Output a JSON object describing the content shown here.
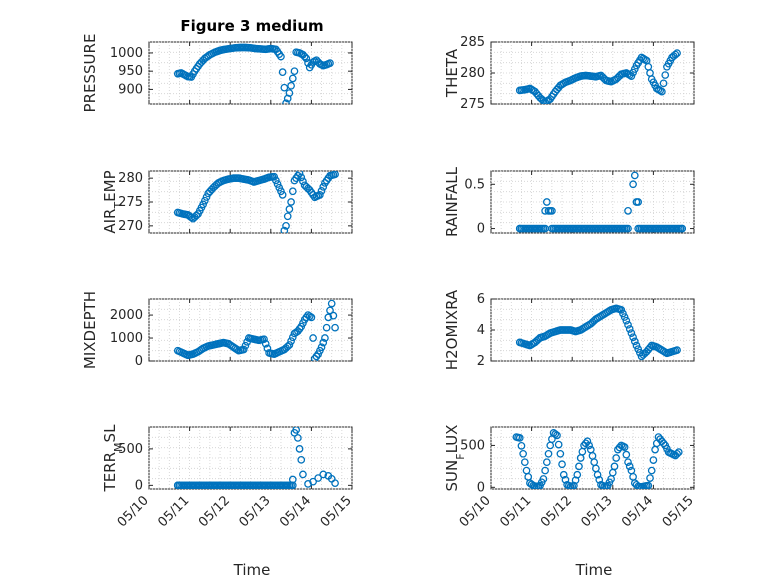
{
  "figure_title": "Figure 3 medium",
  "xlabel": "Time",
  "marker_color": "#0072BD",
  "chart_data": [
    {
      "id": "pressure",
      "type": "scatter",
      "ylabel": "PRESSURE",
      "xlim": [
        "2024-05-10",
        "2024-05-15"
      ],
      "ylim": [
        860,
        1030
      ],
      "yticks": [
        900,
        950,
        1000
      ],
      "ytick_labels": [
        "900",
        "950",
        "1000"
      ],
      "xticks": [
        "05/10",
        "05/11",
        "05/12",
        "05/13",
        "05/14",
        "05/15"
      ],
      "show_xticklabels": false,
      "x": [
        "05/10 17:00",
        "05/10 19:00",
        "05/10 21:00",
        "05/10 23:00",
        "05/11 01:00",
        "05/11 03:00",
        "05/11 06:00",
        "05/11 09:00",
        "05/11 12:00",
        "05/11 15:00",
        "05/11 18:00",
        "05/11 21:00",
        "05/12 00:00",
        "05/12 03:00",
        "05/12 06:00",
        "05/12 09:00",
        "05/12 12:00",
        "05/12 15:00",
        "05/12 18:00",
        "05/12 21:00",
        "05/13 00:00",
        "05/13 03:00",
        "05/13 06:00",
        "05/13 09:00",
        "05/13 10:00",
        "05/13 11:00",
        "05/13 12:00",
        "05/13 13:00",
        "05/13 14:00",
        "05/13 15:00",
        "05/13 17:00",
        "05/13 19:00",
        "05/13 21:00",
        "05/13 23:00",
        "05/14 01:00",
        "05/14 03:00",
        "05/14 05:00",
        "05/14 07:00",
        "05/14 09:00",
        "05/14 11:00"
      ],
      "y": [
        943,
        945,
        940,
        935,
        934,
        950,
        970,
        985,
        995,
        1002,
        1007,
        1010,
        1012,
        1014,
        1015,
        1015,
        1014,
        1012,
        1011,
        1010,
        1012,
        1010,
        990,
        862,
        875,
        890,
        910,
        930,
        950,
        1002,
        1000,
        995,
        985,
        960,
        975,
        980,
        970,
        965,
        968,
        972
      ]
    },
    {
      "id": "theta",
      "type": "scatter",
      "ylabel": "THETA",
      "xlim": [
        "2024-05-10",
        "2024-05-15"
      ],
      "ylim": [
        275,
        285
      ],
      "yticks": [
        275,
        280,
        285
      ],
      "ytick_labels": [
        "275",
        "280",
        "285"
      ],
      "xticks": [
        "05/10",
        "05/11",
        "05/12",
        "05/13",
        "05/14",
        "05/15"
      ],
      "show_xticklabels": false,
      "x": [
        "05/10 17:00",
        "05/10 20:00",
        "05/10 23:00",
        "05/11 02:00",
        "05/11 05:00",
        "05/11 08:00",
        "05/11 11:00",
        "05/11 14:00",
        "05/11 17:00",
        "05/11 20:00",
        "05/11 23:00",
        "05/12 02:00",
        "05/12 05:00",
        "05/12 08:00",
        "05/12 11:00",
        "05/12 14:00",
        "05/12 17:00",
        "05/12 20:00",
        "05/12 23:00",
        "05/13 02:00",
        "05/13 05:00",
        "05/13 08:00",
        "05/13 11:00",
        "05/13 14:00",
        "05/13 17:00",
        "05/13 20:00",
        "05/13 23:00",
        "05/14 02:00",
        "05/14 05:00",
        "05/14 08:00",
        "05/14 11:00",
        "05/14 14:00"
      ],
      "y": [
        277.2,
        277.3,
        277.5,
        277.0,
        276.0,
        275.3,
        275.8,
        277.0,
        278.0,
        278.5,
        278.8,
        279.2,
        279.5,
        279.6,
        279.5,
        279.4,
        279.6,
        278.8,
        278.6,
        279.0,
        279.8,
        280.0,
        279.5,
        281.2,
        282.5,
        282.0,
        279.0,
        277.5,
        277.0,
        281.0,
        282.5,
        283.2
      ]
    },
    {
      "id": "air-temp",
      "type": "scatter",
      "ylabel": "AIR_TEMP",
      "xlim": [
        "2024-05-10",
        "2024-05-15"
      ],
      "ylim": [
        268.5,
        281.5
      ],
      "yticks": [
        270,
        275,
        280
      ],
      "ytick_labels": [
        "270",
        "275",
        "280"
      ],
      "xticks": [
        "05/10",
        "05/11",
        "05/12",
        "05/13",
        "05/14",
        "05/15"
      ],
      "show_xticklabels": false,
      "x": [
        "05/10 17:00",
        "05/10 20:00",
        "05/10 23:00",
        "05/11 02:00",
        "05/11 05:00",
        "05/11 08:00",
        "05/11 11:00",
        "05/11 14:00",
        "05/11 17:00",
        "05/11 20:00",
        "05/11 23:00",
        "05/12 02:00",
        "05/12 05:00",
        "05/12 08:00",
        "05/12 11:00",
        "05/12 14:00",
        "05/12 17:00",
        "05/12 20:00",
        "05/12 23:00",
        "05/13 02:00",
        "05/13 05:00",
        "05/13 07:00",
        "05/13 08:00",
        "05/13 09:00",
        "05/13 10:00",
        "05/13 12:00",
        "05/13 14:00",
        "05/13 17:00",
        "05/13 20:00",
        "05/13 23:00",
        "05/14 02:00",
        "05/14 05:00",
        "05/14 08:00",
        "05/14 11:00",
        "05/14 14:00"
      ],
      "y": [
        272.8,
        272.5,
        272.3,
        271.5,
        272.5,
        274.5,
        276.8,
        278.0,
        279.0,
        279.5,
        279.8,
        280.0,
        280.0,
        279.8,
        279.6,
        279.2,
        279.5,
        279.8,
        280.2,
        280.3,
        278.0,
        276.5,
        269.0,
        270.0,
        272.0,
        275.0,
        279.5,
        281.0,
        278.5,
        277.5,
        276.0,
        276.5,
        279.0,
        280.5,
        280.8
      ]
    },
    {
      "id": "rainfall",
      "type": "scatter",
      "ylabel": "RAINFALL",
      "xlim": [
        "2024-05-10",
        "2024-05-15"
      ],
      "ylim": [
        -0.05,
        0.65
      ],
      "yticks": [
        0,
        0.5
      ],
      "ytick_labels": [
        "0",
        "0.5"
      ],
      "xticks": [
        "05/10",
        "05/11",
        "05/12",
        "05/13",
        "05/14",
        "05/15"
      ],
      "show_xticklabels": false,
      "x": [
        "05/10 17:00",
        "05/11 08:00",
        "05/11 09:00",
        "05/11 10:00",
        "05/11 11:00",
        "05/11 12:00",
        "05/13 09:00",
        "05/13 12:00",
        "05/13 13:00",
        "05/13 14:00",
        "05/13 15:00",
        "05/14 17:00"
      ],
      "y": [
        0,
        0.2,
        0.3,
        0.2,
        0.2,
        0.2,
        0.2,
        0.5,
        0.6,
        0.3,
        0.3,
        0
      ],
      "baseline_note": "",
      "zero_runs": [
        [
          "05/10 17:00",
          "05/11 08:00"
        ],
        [
          "05/11 12:00",
          "05/13 09:00"
        ],
        [
          "05/13 15:00",
          "05/14 17:00"
        ]
      ]
    },
    {
      "id": "mixdepth",
      "type": "scatter",
      "ylabel": "MIXDEPTH",
      "xlim": [
        "2024-05-10",
        "2024-05-15"
      ],
      "ylim": [
        0,
        2700
      ],
      "yticks": [
        0,
        1000,
        2000
      ],
      "ytick_labels": [
        "0",
        "1000",
        "2000"
      ],
      "xticks": [
        "05/10",
        "05/11",
        "05/12",
        "05/13",
        "05/14",
        "05/15"
      ],
      "show_xticklabels": false,
      "x": [
        "05/10 17:00",
        "05/10 20:00",
        "05/10 23:00",
        "05/11 02:00",
        "05/11 05:00",
        "05/11 08:00",
        "05/11 11:00",
        "05/11 14:00",
        "05/11 17:00",
        "05/11 20:00",
        "05/11 23:00",
        "05/12 02:00",
        "05/12 05:00",
        "05/12 08:00",
        "05/12 11:00",
        "05/12 14:00",
        "05/12 17:00",
        "05/12 20:00",
        "05/12 23:00",
        "05/13 02:00",
        "05/13 05:00",
        "05/13 08:00",
        "05/13 11:00",
        "05/13 14:00",
        "05/13 16:00",
        "05/13 18:00",
        "05/13 20:00",
        "05/13 22:00",
        "05/14 00:00",
        "05/14 02:00",
        "05/14 04:00",
        "05/14 06:00",
        "05/14 08:00",
        "05/14 10:00",
        "05/14 12:00",
        "05/14 14:00"
      ],
      "y": [
        450,
        350,
        250,
        300,
        400,
        550,
        650,
        700,
        750,
        800,
        750,
        600,
        450,
        500,
        1000,
        950,
        900,
        950,
        350,
        300,
        400,
        500,
        700,
        1200,
        1300,
        1500,
        1800,
        2000,
        1900,
        100,
        300,
        600,
        1000,
        1900,
        2500,
        1450
      ]
    },
    {
      "id": "h2omixra",
      "type": "scatter",
      "ylabel": "H2OMIXRA",
      "xlim": [
        "2024-05-10",
        "2024-05-15"
      ],
      "ylim": [
        2,
        6
      ],
      "yticks": [
        2,
        4,
        6
      ],
      "ytick_labels": [
        "2",
        "4",
        "6"
      ],
      "xticks": [
        "05/10",
        "05/11",
        "05/12",
        "05/13",
        "05/14",
        "05/15"
      ],
      "show_xticklabels": false,
      "x": [
        "05/10 17:00",
        "05/10 20:00",
        "05/10 23:00",
        "05/11 02:00",
        "05/11 05:00",
        "05/11 08:00",
        "05/11 11:00",
        "05/11 14:00",
        "05/11 17:00",
        "05/11 20:00",
        "05/11 23:00",
        "05/12 02:00",
        "05/12 05:00",
        "05/12 08:00",
        "05/12 11:00",
        "05/12 14:00",
        "05/12 17:00",
        "05/12 20:00",
        "05/12 23:00",
        "05/13 02:00",
        "05/13 05:00",
        "05/13 08:00",
        "05/13 11:00",
        "05/13 14:00",
        "05/13 17:00",
        "05/13 20:00",
        "05/13 23:00",
        "05/14 02:00",
        "05/14 05:00",
        "05/14 08:00",
        "05/14 11:00",
        "05/14 14:00"
      ],
      "y": [
        3.2,
        3.1,
        3.0,
        3.2,
        3.5,
        3.6,
        3.8,
        3.9,
        4.0,
        4.0,
        4.0,
        3.9,
        4.0,
        4.2,
        4.4,
        4.7,
        4.9,
        5.1,
        5.3,
        5.4,
        5.3,
        4.6,
        3.8,
        3.0,
        2.3,
        2.6,
        3.0,
        2.9,
        2.7,
        2.5,
        2.6,
        2.7
      ]
    },
    {
      "id": "terr-msl",
      "type": "scatter",
      "ylabel": "TERR_MSL",
      "xlim": [
        "2024-05-10",
        "2024-05-15"
      ],
      "ylim": [
        -50,
        800
      ],
      "yticks": [
        0,
        500
      ],
      "ytick_labels": [
        "0",
        "500"
      ],
      "xticks": [
        "05/10",
        "05/11",
        "05/12",
        "05/13",
        "05/14",
        "05/15"
      ],
      "show_xticklabels": true,
      "x": [
        "05/10 17:00",
        "05/13 13:00",
        "05/13 14:00",
        "05/13 15:00",
        "05/13 16:00",
        "05/13 17:00",
        "05/13 18:00",
        "05/13 19:00",
        "05/13 22:00",
        "05/14 01:00",
        "05/14 04:00",
        "05/14 07:00",
        "05/14 10:00",
        "05/14 12:00",
        "05/14 14:00"
      ],
      "y": [
        0,
        80,
        720,
        760,
        650,
        500,
        350,
        150,
        20,
        50,
        100,
        150,
        130,
        90,
        30
      ],
      "zero_runs": [
        [
          "05/10 17:00",
          "05/13 13:00"
        ]
      ]
    },
    {
      "id": "sun-flux",
      "type": "scatter",
      "ylabel": "SUN_FLUX",
      "xlim": [
        "2024-05-10",
        "2024-05-15"
      ],
      "ylim": [
        -20,
        720
      ],
      "yticks": [
        0,
        500
      ],
      "ytick_labels": [
        "0",
        "500"
      ],
      "xticks": [
        "05/10",
        "05/11",
        "05/12",
        "05/13",
        "05/14",
        "05/15"
      ],
      "show_xticklabels": true,
      "x": [
        "05/10 15:00",
        "05/10 17:00",
        "05/10 19:00",
        "05/10 21:00",
        "05/10 23:00",
        "05/11 01:00",
        "05/11 03:00",
        "05/11 05:00",
        "05/11 07:00",
        "05/11 09:00",
        "05/11 11:00",
        "05/11 13:00",
        "05/11 15:00",
        "05/11 17:00",
        "05/11 19:00",
        "05/11 21:00",
        "05/11 23:00",
        "05/12 01:00",
        "05/12 03:00",
        "05/12 05:00",
        "05/12 07:00",
        "05/12 09:00",
        "05/12 11:00",
        "05/12 13:00",
        "05/12 15:00",
        "05/12 17:00",
        "05/12 19:00",
        "05/12 21:00",
        "05/12 23:00",
        "05/13 01:00",
        "05/13 03:00",
        "05/13 05:00",
        "05/13 07:00",
        "05/13 09:00",
        "05/13 11:00",
        "05/13 13:00",
        "05/13 15:00",
        "05/13 17:00",
        "05/13 19:00",
        "05/13 21:00",
        "05/13 23:00",
        "05/14 01:00",
        "05/14 03:00",
        "05/14 05:00",
        "05/14 07:00",
        "05/14 09:00",
        "05/14 11:00",
        "05/14 13:00",
        "05/14 15:00"
      ],
      "y": [
        600,
        590,
        400,
        200,
        50,
        20,
        10,
        20,
        100,
        300,
        500,
        650,
        620,
        400,
        150,
        30,
        10,
        20,
        150,
        350,
        500,
        550,
        450,
        300,
        150,
        30,
        10,
        20,
        100,
        250,
        450,
        500,
        480,
        300,
        200,
        50,
        10,
        5,
        15,
        20,
        200,
        450,
        600,
        550,
        500,
        420,
        400,
        380,
        420
      ]
    }
  ]
}
